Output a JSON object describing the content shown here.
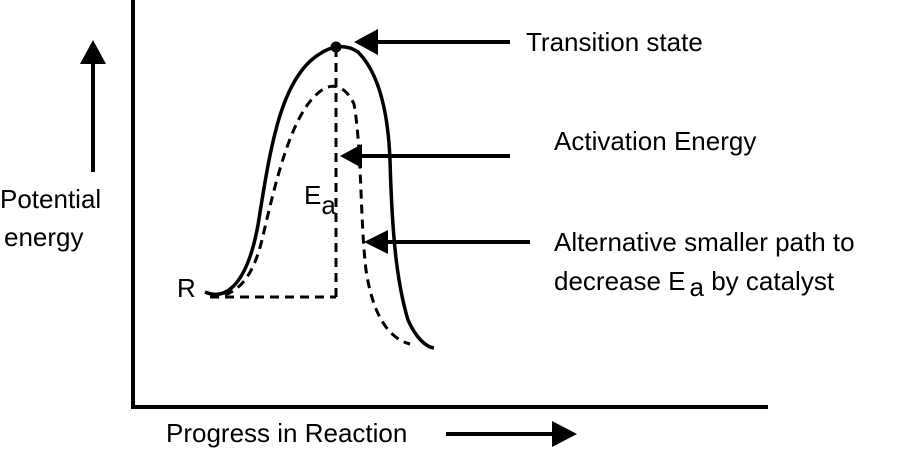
{
  "labels": {
    "y_axis_line1": "Potential",
    "y_axis_line2": "energy",
    "x_axis": "Progress in Reaction",
    "reactant": "R",
    "ea_main": "E",
    "ea_sub": "a",
    "transition_state": "Transition state",
    "activation_energy": "Activation Energy",
    "alt_path_line1": "Alternative smaller path to",
    "alt_path_line2_pre": "decrease E",
    "alt_path_line2_sub": "a",
    "alt_path_line2_post": " by catalyst"
  },
  "colors": {
    "ink": "#000000",
    "background": "#ffffff"
  }
}
